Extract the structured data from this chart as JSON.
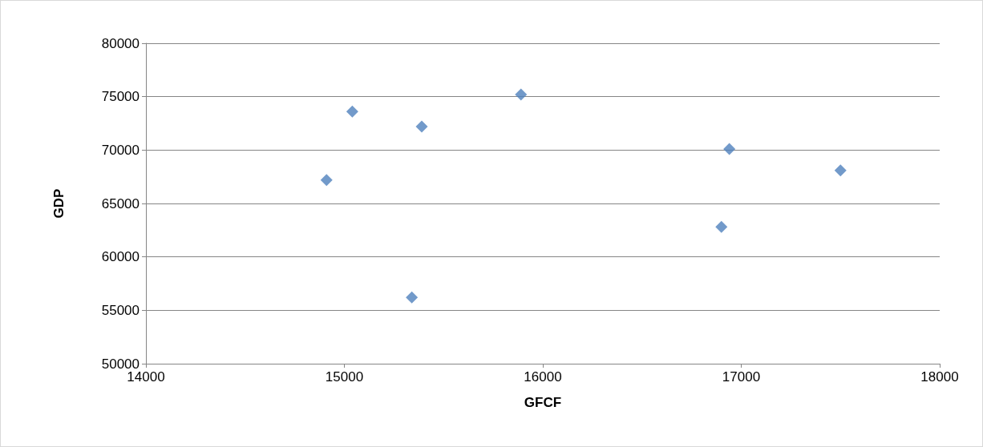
{
  "chart_data": {
    "type": "scatter",
    "xlabel": "GFCF",
    "ylabel": "GDP",
    "series": [
      {
        "color": "#4f81bd",
        "x": [
          14910,
          15040,
          15390,
          15340,
          15890,
          16940,
          16900,
          17500
        ],
        "values": [
          67200,
          73600,
          72200,
          56200,
          75200,
          70100,
          62800,
          68100
        ]
      }
    ],
    "xlim": [
      14000,
      18000
    ],
    "xticks": [
      14000,
      15000,
      16000,
      17000,
      18000
    ],
    "ylim": [
      50000,
      80000
    ],
    "yticks": [
      50000,
      55000,
      60000,
      65000,
      70000,
      75000,
      80000
    ],
    "grid": "y",
    "marker": "diamond"
  }
}
